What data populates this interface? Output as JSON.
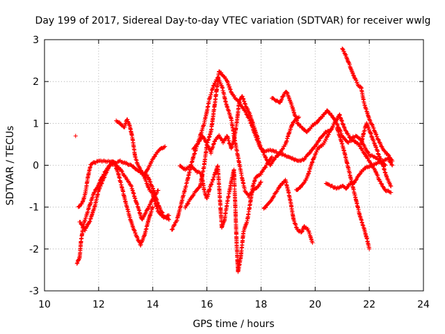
{
  "chart_data": {
    "type": "scatter",
    "title": "Day 199 of 2017, Sidereal Day-to-day VTEC variation (SDTVAR) for receiver wwlg",
    "xlabel": "GPS time / hours",
    "ylabel": "SDTVAR / TECUs",
    "xlim": [
      10,
      24
    ],
    "ylim": [
      -3,
      3
    ],
    "xticks": [
      "10",
      "12",
      "14",
      "16",
      "18",
      "20",
      "22",
      "24"
    ],
    "yticks": [
      "-3",
      "-2",
      "-1",
      "0",
      "1",
      "2",
      "3"
    ],
    "grid": true,
    "marker": "plus",
    "color": "#ff0000",
    "series": [
      {
        "name": "t1",
        "points": [
          [
            11.15,
            0.7
          ]
        ]
      },
      {
        "name": "t2",
        "points": [
          [
            11.2,
            -2.35
          ],
          [
            11.3,
            -2.2
          ],
          [
            11.35,
            -1.8
          ],
          [
            11.45,
            -1.4
          ],
          [
            11.55,
            -1.2
          ],
          [
            11.65,
            -1.0
          ],
          [
            11.8,
            -0.7
          ],
          [
            12.0,
            -0.45
          ],
          [
            12.2,
            -0.2
          ],
          [
            12.4,
            0.0
          ],
          [
            12.6,
            0.05
          ],
          [
            12.8,
            -0.1
          ],
          [
            13.0,
            -0.3
          ],
          [
            13.2,
            -0.5
          ],
          [
            13.4,
            -0.9
          ],
          [
            13.6,
            -1.3
          ],
          [
            13.8,
            -1.05
          ],
          [
            14.0,
            -0.8
          ],
          [
            14.2,
            -0.6
          ]
        ]
      },
      {
        "name": "t3",
        "points": [
          [
            11.25,
            -1.0
          ],
          [
            11.4,
            -0.9
          ],
          [
            11.5,
            -0.7
          ],
          [
            11.6,
            -0.3
          ],
          [
            11.7,
            0.0
          ],
          [
            11.8,
            0.05
          ],
          [
            12.0,
            0.1
          ],
          [
            12.2,
            0.1
          ],
          [
            12.4,
            0.1
          ],
          [
            12.6,
            0.05
          ],
          [
            12.8,
            0.1
          ],
          [
            13.0,
            0.05
          ],
          [
            13.2,
            0.0
          ],
          [
            13.4,
            -0.1
          ],
          [
            13.6,
            -0.2
          ],
          [
            13.8,
            -0.25
          ],
          [
            14.0,
            -0.55
          ],
          [
            14.2,
            -0.95
          ],
          [
            14.4,
            -1.2
          ],
          [
            14.6,
            -1.3
          ]
        ]
      },
      {
        "name": "t4",
        "points": [
          [
            11.3,
            -1.35
          ],
          [
            11.5,
            -1.55
          ],
          [
            11.7,
            -1.3
          ],
          [
            11.85,
            -1.0
          ],
          [
            12.0,
            -0.6
          ],
          [
            12.2,
            -0.3
          ],
          [
            12.4,
            0.0
          ],
          [
            12.55,
            0.1
          ],
          [
            12.7,
            -0.15
          ],
          [
            12.85,
            -0.5
          ],
          [
            13.0,
            -0.9
          ],
          [
            13.2,
            -1.35
          ],
          [
            13.4,
            -1.7
          ],
          [
            13.55,
            -1.9
          ],
          [
            13.7,
            -1.65
          ],
          [
            13.85,
            -1.3
          ],
          [
            14.0,
            -1.0
          ]
        ]
      },
      {
        "name": "t5",
        "points": [
          [
            12.65,
            1.05
          ],
          [
            12.8,
            1.0
          ],
          [
            12.95,
            0.9
          ],
          [
            13.05,
            1.1
          ],
          [
            13.15,
            0.95
          ],
          [
            13.25,
            0.65
          ],
          [
            13.35,
            0.2
          ],
          [
            13.45,
            0.0
          ],
          [
            13.55,
            -0.1
          ],
          [
            13.7,
            -0.3
          ],
          [
            13.85,
            -0.55
          ],
          [
            14.0,
            -0.7
          ],
          [
            14.2,
            -1.1
          ],
          [
            14.4,
            -1.25
          ],
          [
            14.6,
            -1.2
          ]
        ]
      },
      {
        "name": "t6",
        "points": [
          [
            13.7,
            -0.2
          ],
          [
            13.85,
            -0.05
          ],
          [
            14.0,
            0.15
          ],
          [
            14.15,
            0.3
          ],
          [
            14.3,
            0.4
          ],
          [
            14.45,
            0.45
          ]
        ]
      },
      {
        "name": "t7",
        "points": [
          [
            14.7,
            -1.55
          ],
          [
            14.9,
            -1.3
          ],
          [
            15.1,
            -0.8
          ],
          [
            15.3,
            -0.3
          ],
          [
            15.5,
            0.2
          ],
          [
            15.7,
            0.6
          ],
          [
            15.9,
            1.0
          ],
          [
            16.0,
            1.3
          ],
          [
            16.1,
            1.6
          ],
          [
            16.25,
            1.9
          ],
          [
            16.4,
            2.1
          ],
          [
            16.55,
            1.9
          ],
          [
            16.7,
            1.5
          ],
          [
            16.9,
            1.1
          ],
          [
            17.0,
            0.7
          ],
          [
            17.15,
            0.2
          ],
          [
            17.3,
            -0.3
          ],
          [
            17.4,
            -0.6
          ],
          [
            17.55,
            -0.75
          ],
          [
            17.7,
            -0.6
          ],
          [
            17.85,
            -0.55
          ],
          [
            18.0,
            -0.4
          ]
        ]
      },
      {
        "name": "t8",
        "points": [
          [
            15.0,
            0.0
          ],
          [
            15.2,
            -0.1
          ],
          [
            15.4,
            0.0
          ],
          [
            15.6,
            -0.15
          ],
          [
            15.8,
            -0.2
          ],
          [
            15.9,
            -0.6
          ],
          [
            16.0,
            -0.8
          ],
          [
            16.1,
            -0.55
          ],
          [
            16.25,
            -0.3
          ],
          [
            16.4,
            0.0
          ],
          [
            16.5,
            -1.0
          ],
          [
            16.55,
            -1.5
          ],
          [
            16.65,
            -1.3
          ],
          [
            16.75,
            -0.9
          ],
          [
            16.9,
            -0.4
          ],
          [
            17.0,
            -0.1
          ],
          [
            17.1,
            -1.9
          ],
          [
            17.15,
            -2.55
          ],
          [
            17.25,
            -2.2
          ],
          [
            17.35,
            -1.6
          ],
          [
            17.5,
            -1.3
          ],
          [
            17.6,
            -0.9
          ],
          [
            17.7,
            -0.5
          ],
          [
            17.8,
            -0.3
          ],
          [
            18.0,
            -0.2
          ],
          [
            18.2,
            0.0
          ],
          [
            18.4,
            0.2
          ]
        ]
      },
      {
        "name": "t9",
        "points": [
          [
            15.2,
            -1.0
          ],
          [
            15.4,
            -0.8
          ],
          [
            15.6,
            -0.6
          ],
          [
            15.75,
            -0.5
          ],
          [
            15.9,
            0.0
          ],
          [
            16.0,
            0.5
          ],
          [
            16.15,
            0.8
          ],
          [
            16.3,
            1.5
          ],
          [
            16.45,
            2.25
          ],
          [
            16.6,
            2.15
          ],
          [
            16.75,
            2.0
          ],
          [
            16.9,
            1.75
          ],
          [
            17.05,
            1.6
          ],
          [
            17.2,
            1.5
          ],
          [
            17.4,
            1.3
          ],
          [
            17.6,
            1.05
          ],
          [
            17.8,
            0.7
          ],
          [
            17.95,
            0.45
          ],
          [
            18.1,
            0.35
          ],
          [
            18.4,
            0.35
          ],
          [
            18.6,
            0.3
          ],
          [
            18.8,
            0.25
          ],
          [
            19.0,
            0.2
          ],
          [
            19.2,
            0.15
          ],
          [
            19.4,
            0.1
          ],
          [
            19.6,
            0.15
          ],
          [
            19.8,
            0.3
          ],
          [
            20.0,
            0.45
          ],
          [
            20.2,
            0.65
          ],
          [
            20.4,
            0.8
          ],
          [
            20.6,
            0.85
          ]
        ]
      },
      {
        "name": "t10",
        "points": [
          [
            15.5,
            0.4
          ],
          [
            15.7,
            0.55
          ],
          [
            15.85,
            0.7
          ],
          [
            16.0,
            0.5
          ],
          [
            16.15,
            0.3
          ],
          [
            16.3,
            0.6
          ],
          [
            16.45,
            0.7
          ],
          [
            16.6,
            0.55
          ],
          [
            16.75,
            0.7
          ],
          [
            16.9,
            0.4
          ],
          [
            17.0,
            0.6
          ],
          [
            17.1,
            1.0
          ],
          [
            17.2,
            1.55
          ],
          [
            17.3,
            1.65
          ],
          [
            17.45,
            1.4
          ],
          [
            17.6,
            1.2
          ],
          [
            17.75,
            0.9
          ],
          [
            17.9,
            0.6
          ],
          [
            18.0,
            0.4
          ],
          [
            18.2,
            0.15
          ],
          [
            18.35,
            0.0
          ],
          [
            18.5,
            0.15
          ],
          [
            18.7,
            0.3
          ],
          [
            18.9,
            0.5
          ],
          [
            19.05,
            0.8
          ],
          [
            19.2,
            1.05
          ],
          [
            19.4,
            1.15
          ]
        ]
      },
      {
        "name": "t11",
        "points": [
          [
            18.4,
            1.6
          ],
          [
            18.55,
            1.55
          ],
          [
            18.7,
            1.5
          ],
          [
            18.85,
            1.7
          ],
          [
            18.95,
            1.75
          ],
          [
            19.1,
            1.5
          ],
          [
            19.25,
            1.2
          ],
          [
            19.35,
            1.0
          ],
          [
            19.5,
            0.9
          ],
          [
            19.7,
            0.8
          ],
          [
            19.9,
            0.95
          ],
          [
            20.1,
            1.05
          ],
          [
            20.3,
            1.2
          ],
          [
            20.45,
            1.3
          ],
          [
            20.6,
            1.2
          ],
          [
            20.8,
            1.0
          ],
          [
            21.0,
            0.7
          ],
          [
            21.2,
            0.55
          ],
          [
            21.4,
            0.6
          ],
          [
            21.6,
            0.5
          ],
          [
            21.8,
            0.3
          ],
          [
            22.0,
            0.1
          ],
          [
            22.2,
            -0.1
          ],
          [
            22.4,
            -0.4
          ],
          [
            22.6,
            -0.6
          ],
          [
            22.8,
            -0.65
          ]
        ]
      },
      {
        "name": "t12",
        "points": [
          [
            18.1,
            -1.05
          ],
          [
            18.3,
            -0.9
          ],
          [
            18.5,
            -0.7
          ],
          [
            18.7,
            -0.5
          ],
          [
            18.9,
            -0.35
          ],
          [
            19.0,
            -0.6
          ],
          [
            19.1,
            -0.9
          ],
          [
            19.2,
            -1.3
          ],
          [
            19.35,
            -1.55
          ],
          [
            19.5,
            -1.6
          ],
          [
            19.6,
            -1.45
          ],
          [
            19.75,
            -1.55
          ],
          [
            19.9,
            -1.85
          ]
        ]
      },
      {
        "name": "t13",
        "points": [
          [
            19.3,
            -0.6
          ],
          [
            19.5,
            -0.5
          ],
          [
            19.7,
            -0.3
          ],
          [
            19.9,
            0.1
          ],
          [
            20.1,
            0.4
          ],
          [
            20.3,
            0.5
          ],
          [
            20.5,
            0.75
          ],
          [
            20.7,
            1.0
          ],
          [
            20.9,
            1.2
          ],
          [
            21.1,
            0.85
          ],
          [
            21.3,
            0.65
          ],
          [
            21.5,
            0.7
          ],
          [
            21.7,
            0.6
          ],
          [
            21.9,
            0.35
          ],
          [
            22.0,
            0.25
          ],
          [
            22.2,
            0.2
          ],
          [
            22.4,
            0.1
          ],
          [
            22.6,
            0.0
          ]
        ]
      },
      {
        "name": "t14",
        "points": [
          [
            20.4,
            -0.45
          ],
          [
            20.6,
            -0.5
          ],
          [
            20.8,
            -0.55
          ],
          [
            21.0,
            -0.5
          ],
          [
            21.15,
            -0.55
          ],
          [
            21.25,
            -0.45
          ],
          [
            21.4,
            -0.45
          ],
          [
            21.55,
            -0.3
          ],
          [
            21.7,
            -0.15
          ],
          [
            21.9,
            -0.05
          ],
          [
            22.1,
            0.0
          ],
          [
            22.3,
            0.05
          ],
          [
            22.5,
            0.1
          ],
          [
            22.7,
            0.15
          ],
          [
            22.85,
            0.0
          ]
        ]
      },
      {
        "name": "t15",
        "points": [
          [
            20.8,
            0.9
          ],
          [
            21.0,
            0.5
          ],
          [
            21.2,
            0.0
          ],
          [
            21.35,
            -0.4
          ],
          [
            21.5,
            -0.8
          ],
          [
            21.65,
            -1.2
          ],
          [
            21.8,
            -1.5
          ],
          [
            21.95,
            -1.85
          ],
          [
            22.0,
            -2.0
          ]
        ]
      },
      {
        "name": "t16",
        "points": [
          [
            21.0,
            2.8
          ],
          [
            21.15,
            2.6
          ],
          [
            21.3,
            2.35
          ],
          [
            21.45,
            2.1
          ],
          [
            21.6,
            1.9
          ],
          [
            21.7,
            1.85
          ],
          [
            21.8,
            1.5
          ],
          [
            21.9,
            1.3
          ],
          [
            22.0,
            1.1
          ],
          [
            22.15,
            0.9
          ],
          [
            22.3,
            0.65
          ],
          [
            22.45,
            0.45
          ],
          [
            22.6,
            0.3
          ],
          [
            22.75,
            0.2
          ],
          [
            22.85,
            0.1
          ]
        ]
      },
      {
        "name": "t17",
        "points": [
          [
            21.7,
            0.5
          ],
          [
            21.8,
            0.8
          ],
          [
            21.9,
            1.0
          ],
          [
            22.05,
            0.75
          ],
          [
            22.2,
            0.5
          ],
          [
            22.35,
            0.25
          ],
          [
            22.5,
            0.0
          ],
          [
            22.65,
            -0.3
          ],
          [
            22.8,
            -0.5
          ]
        ]
      }
    ]
  }
}
